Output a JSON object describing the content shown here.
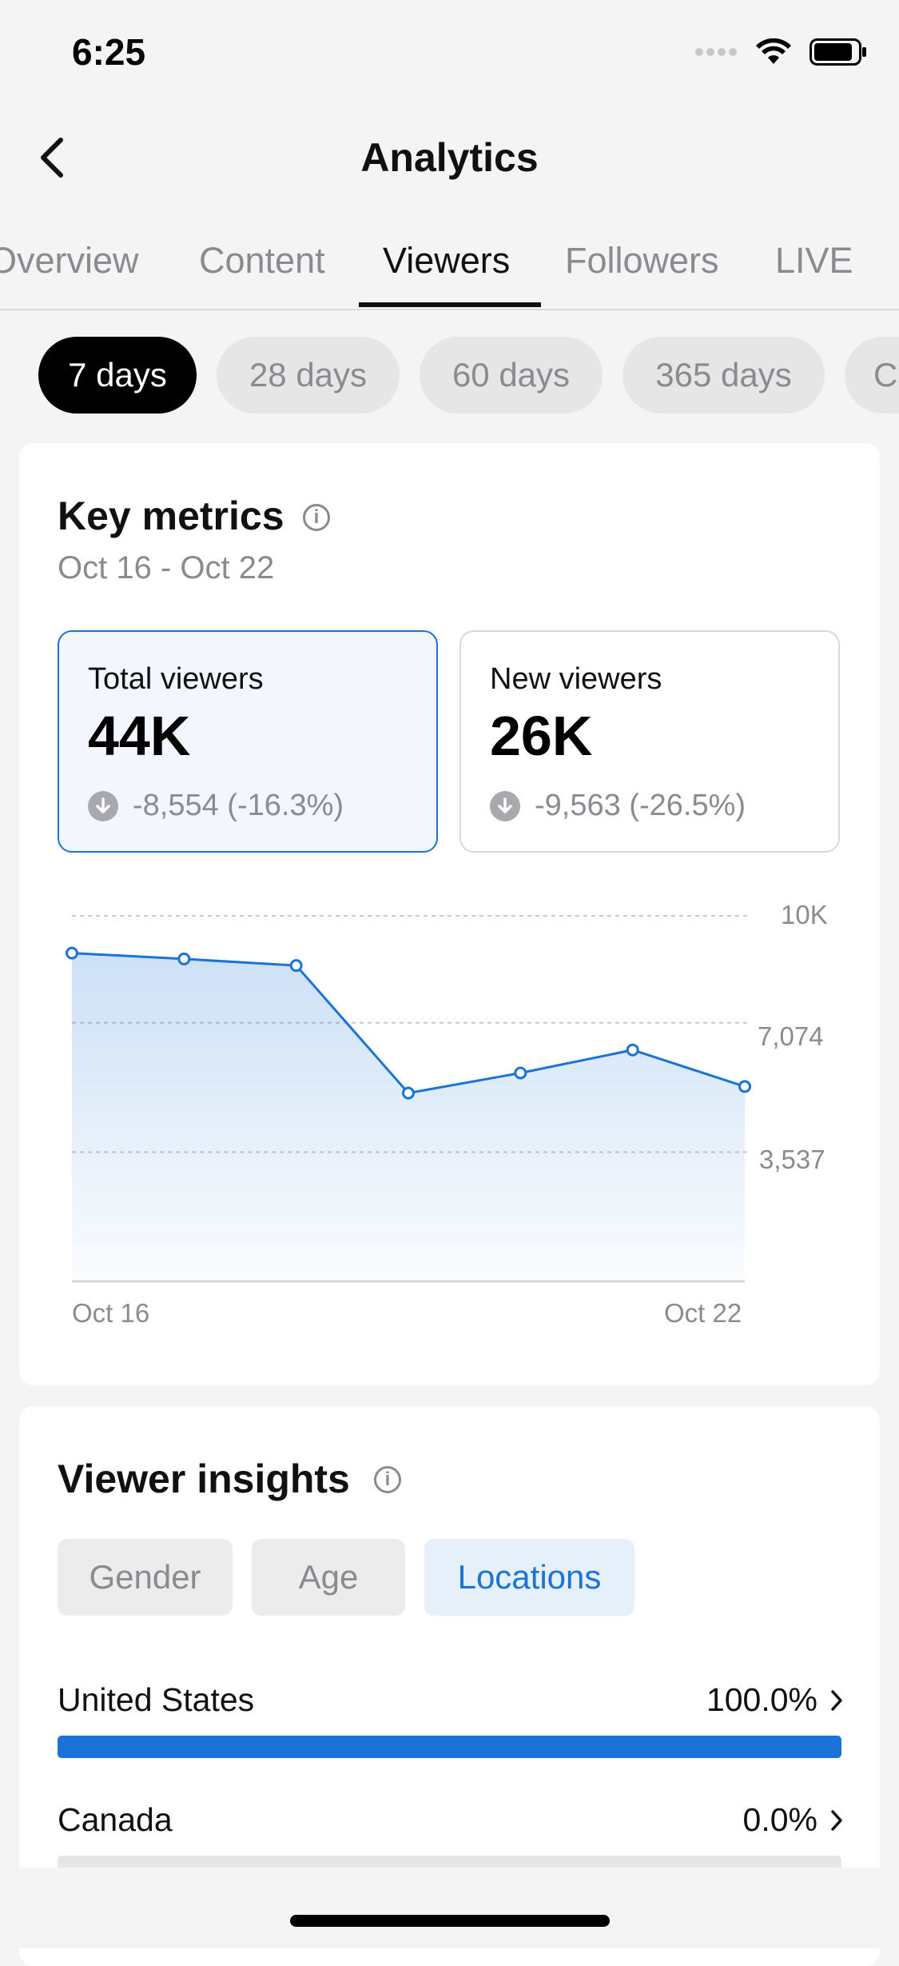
{
  "status_bar": {
    "time": "6:25"
  },
  "header": {
    "title": "Analytics"
  },
  "tabs": [
    {
      "label": "Overview"
    },
    {
      "label": "Content"
    },
    {
      "label": "Viewers"
    },
    {
      "label": "Followers"
    },
    {
      "label": "LIVE"
    }
  ],
  "active_tab": "Viewers",
  "ranges": [
    {
      "label": "7 days"
    },
    {
      "label": "28 days"
    },
    {
      "label": "60 days"
    },
    {
      "label": "365 days"
    }
  ],
  "active_range": "7 days",
  "key_metrics": {
    "title": "Key metrics",
    "date_range": "Oct 16 - Oct 22",
    "cards": [
      {
        "label": "Total viewers",
        "value": "44K",
        "change": "-8,554 (-16.3%)"
      },
      {
        "label": "New viewers",
        "value": "26K",
        "change": "-9,563 (-26.5%)"
      }
    ]
  },
  "chart_data": {
    "type": "area",
    "x": [
      "Oct 16",
      "Oct 17",
      "Oct 18",
      "Oct 19",
      "Oct 20",
      "Oct 21",
      "Oct 22"
    ],
    "values": [
      8980,
      8820,
      8640,
      5150,
      5700,
      6330,
      5330
    ],
    "ylim": [
      0,
      10000
    ],
    "y_ticks": [
      "10K",
      "7,074",
      "3,537"
    ],
    "y_tick_values": [
      10000,
      7074,
      3537
    ],
    "x_tick_labels": [
      "Oct 16",
      "Oct 22"
    ],
    "grid": true,
    "color": "#1a73d6"
  },
  "viewer_insights": {
    "title": "Viewer insights",
    "segments": [
      {
        "label": "Gender"
      },
      {
        "label": "Age"
      },
      {
        "label": "Locations"
      }
    ],
    "active_segment": "Locations",
    "locations": [
      {
        "name": "United States",
        "percent_label": "100.0%",
        "share": 1.0
      },
      {
        "name": "Canada",
        "percent_label": "0.0%",
        "share": 0.0
      }
    ]
  },
  "colors": {
    "accent": "#1a73d6",
    "active_pill": "#000000",
    "muted_text": "#8a8b91"
  }
}
